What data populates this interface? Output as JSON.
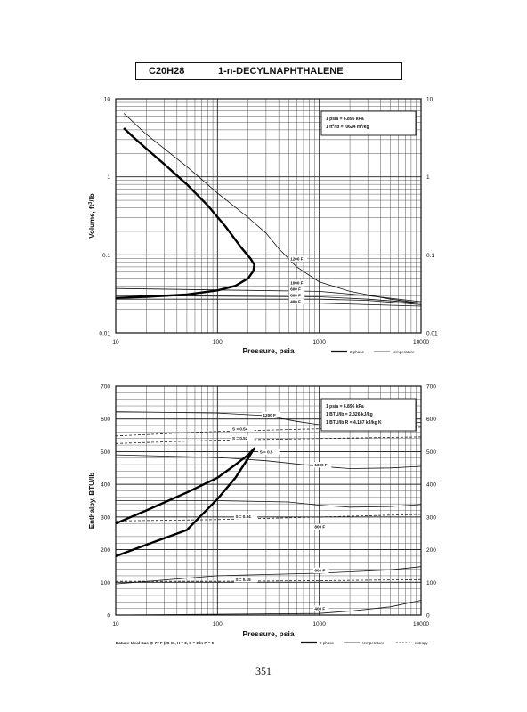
{
  "header": {
    "formula": "C20H28",
    "compound": "1-n-DECYLNAPHTHALENE"
  },
  "page_number": "351",
  "chart_data": [
    {
      "type": "line",
      "x_scale": "log",
      "y_scale": "log",
      "xlim": [
        10,
        10000
      ],
      "ylim": [
        0.01,
        10
      ],
      "xlabel": "Pressure,  psia",
      "ylabel": "Volume, ft^3/lb",
      "x_ticks": [
        10,
        100,
        1000,
        10000
      ],
      "x_tick_labels": [
        "10",
        "100",
        "1000",
        "10000"
      ],
      "y_ticks": [
        0.01,
        0.1,
        1,
        10
      ],
      "y_tick_labels": [
        "0.01",
        "0.1",
        "1",
        "10"
      ],
      "grid": true,
      "conversions": [
        "1 psia  =  6.895 kPa",
        "1 ft^3/lb  =  .0624 m^3/kg"
      ],
      "legend": [
        {
          "label": "2 phase",
          "style": "thick"
        },
        {
          "label": "temperature",
          "style": "thin"
        }
      ],
      "two_phase": {
        "x": [
          12,
          15,
          20,
          30,
          50,
          80,
          120,
          170,
          210,
          230,
          225,
          200,
          150,
          100,
          50,
          20,
          10
        ],
        "y": [
          4.2,
          3.2,
          2.3,
          1.45,
          0.8,
          0.43,
          0.23,
          0.125,
          0.09,
          0.075,
          0.062,
          0.05,
          0.04,
          0.035,
          0.031,
          0.029,
          0.028
        ]
      },
      "series": [
        {
          "name": "1200 F",
          "x": [
            12,
            20,
            50,
            100,
            200,
            300,
            400,
            600,
            1000,
            2000,
            5000,
            10000
          ],
          "y": [
            6.5,
            3.5,
            1.35,
            0.62,
            0.3,
            0.19,
            0.12,
            0.07,
            0.045,
            0.034,
            0.027,
            0.024
          ]
        },
        {
          "name": "1000 F",
          "x": [
            10,
            1000,
            3000,
            10000
          ],
          "y": [
            0.037,
            0.034,
            0.03,
            0.025
          ]
        },
        {
          "name": "600 F",
          "x": [
            10,
            1000,
            3000,
            10000
          ],
          "y": [
            0.03,
            0.029,
            0.027,
            0.024
          ]
        },
        {
          "name": "800 F",
          "x": [
            10,
            1000,
            3000,
            10000
          ],
          "y": [
            0.027,
            0.027,
            0.026,
            0.023
          ]
        },
        {
          "name": "400 F",
          "x": [
            10,
            1000,
            10000
          ],
          "y": [
            0.024,
            0.024,
            0.022
          ]
        }
      ],
      "curve_labels": [
        {
          "text": "1200 F",
          "x": 520,
          "y": 0.085
        },
        {
          "text": "1000 F",
          "x": 520,
          "y": 0.042
        },
        {
          "text": "600 F",
          "x": 520,
          "y": 0.035
        },
        {
          "text": "800 F",
          "x": 520,
          "y": 0.029
        },
        {
          "text": "400 F",
          "x": 520,
          "y": 0.024
        }
      ]
    },
    {
      "type": "line",
      "x_scale": "log",
      "y_scale": "linear",
      "xlim": [
        10,
        10000
      ],
      "ylim": [
        0,
        700
      ],
      "xlabel": "Pressure,  psia",
      "ylabel": "Enthalpy, BTU/lb",
      "x_ticks": [
        10,
        100,
        1000,
        10000
      ],
      "x_tick_labels": [
        "10",
        "100",
        "1000",
        "10000"
      ],
      "y_ticks": [
        0,
        100,
        200,
        300,
        400,
        500,
        600,
        700
      ],
      "y_tick_labels": [
        "0",
        "100",
        "200",
        "300",
        "400",
        "500",
        "600",
        "700"
      ],
      "grid": true,
      "conversions": [
        "1 psia  =  6.895 kPa",
        "1 BTU/lb  =  2.326 kJ/kg",
        "1 BTU/lb R  =  4.187 kJ/kg K"
      ],
      "legend": [
        {
          "label": "2 phase",
          "style": "thick"
        },
        {
          "label": "temperature",
          "style": "thin"
        },
        {
          "label": "entropy",
          "style": "dashed"
        }
      ],
      "footnote": "Datum: Ideal Gas @ 77 F (25 C),  H = 0,  S = 0 ln P = 0",
      "two_phase": {
        "x": [
          10,
          20,
          50,
          100,
          150,
          200,
          230,
          200,
          150,
          100,
          50,
          20,
          10
        ],
        "y": [
          280,
          320,
          375,
          420,
          460,
          490,
          510,
          480,
          420,
          355,
          260,
          215,
          180
        ]
      },
      "series": [
        {
          "name": "1200 F",
          "x": [
            10,
            100,
            300,
            600,
            1000,
            2000,
            5000,
            10000
          ],
          "y": [
            622,
            618,
            610,
            593,
            583,
            578,
            582,
            590
          ]
        },
        {
          "name": "1000 F",
          "x": [
            10,
            100,
            300,
            1000,
            2000,
            5000,
            10000
          ],
          "y": [
            490,
            482,
            472,
            455,
            448,
            450,
            455
          ]
        },
        {
          "name": "800 F",
          "x": [
            10,
            100,
            500,
            1000,
            2000,
            5000,
            10000
          ],
          "y": [
            350,
            350,
            346,
            336,
            330,
            332,
            338
          ]
        },
        {
          "name": "600 F",
          "x": [
            10,
            100,
            1000,
            2000,
            5000,
            10000
          ],
          "y": [
            95,
            120,
            128,
            132,
            138,
            148
          ]
        },
        {
          "name": "400 F",
          "x": [
            10,
            1000,
            2000,
            5000,
            10000
          ],
          "y": [
            0,
            5,
            12,
            25,
            45
          ]
        }
      ],
      "entropy_lines": [
        {
          "name": "S = 0.54",
          "x": [
            10,
            100,
            1000,
            10000
          ],
          "y": [
            548,
            562,
            570,
            575
          ]
        },
        {
          "name": "S = 0.52",
          "x": [
            10,
            100,
            1000,
            10000
          ],
          "y": [
            525,
            535,
            540,
            545
          ]
        },
        {
          "name": "S = 0.34",
          "x": [
            10,
            100,
            1000,
            10000
          ],
          "y": [
            288,
            292,
            300,
            308
          ]
        },
        {
          "name": "S = 0.15",
          "x": [
            10,
            100,
            1000,
            10000
          ],
          "y": [
            103,
            103,
            105,
            108
          ]
        }
      ],
      "curve_labels": [
        {
          "text": "1200 F",
          "x": 280,
          "y": 608
        },
        {
          "text": "S = 0.54",
          "x": 140,
          "y": 565
        },
        {
          "text": "S = 0.52",
          "x": 140,
          "y": 537
        },
        {
          "text": "S = 0.5",
          "x": 260,
          "y": 495
        },
        {
          "text": "1000 F",
          "x": 900,
          "y": 455
        },
        {
          "text": "S = 0.34",
          "x": 150,
          "y": 297
        },
        {
          "text": "800 F",
          "x": 900,
          "y": 265
        },
        {
          "text": "600 F",
          "x": 900,
          "y": 132
        },
        {
          "text": "S = 0.15",
          "x": 150,
          "y": 104
        },
        {
          "text": "400 F",
          "x": 900,
          "y": 15
        }
      ]
    }
  ]
}
